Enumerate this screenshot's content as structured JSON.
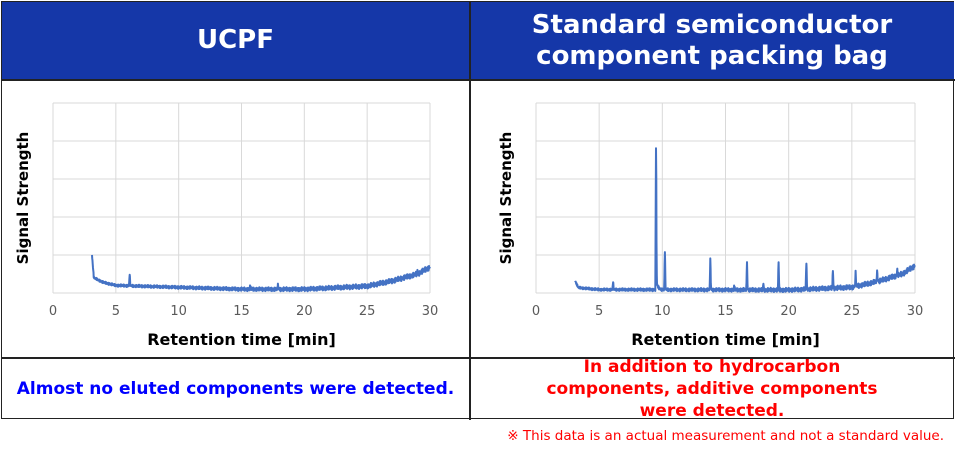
{
  "headers": {
    "left": "UCPF",
    "right": "Standard semiconductor component packing bag"
  },
  "footers": {
    "left": "Almost no eluted components were detected.",
    "right": "In addition to hydrocarbon components, additive components were detected."
  },
  "note": "※ This data is an actual measurement and not a standard value.",
  "colors": {
    "header_bg": "#1537A8",
    "line": "#4472C4",
    "left_footer": "#0000FF",
    "right_footer": "#FF0000",
    "grid": "#D9D9D9"
  },
  "chart_data": [
    {
      "type": "line",
      "title": "",
      "xlabel": "Retention time [min]",
      "ylabel": "Signal Strength",
      "xlim": [
        0,
        30
      ],
      "ylim": [
        0,
        5
      ],
      "xticks": [
        "0",
        "5",
        "10",
        "15",
        "20",
        "25",
        "30"
      ],
      "y_gridlines": 5,
      "grid": true,
      "baseline": [
        [
          3.1,
          1.0
        ],
        [
          3.25,
          0.4
        ],
        [
          4,
          0.28
        ],
        [
          5,
          0.2
        ],
        [
          10,
          0.15
        ],
        [
          15,
          0.1
        ],
        [
          20,
          0.1
        ],
        [
          25,
          0.18
        ],
        [
          27,
          0.32
        ],
        [
          29,
          0.5
        ],
        [
          30,
          0.68
        ]
      ],
      "peaks": [
        [
          6.1,
          0.3
        ],
        [
          15.7,
          0.08
        ],
        [
          17.9,
          0.1
        ],
        [
          29,
          0.1
        ]
      ]
    },
    {
      "type": "line",
      "title": "",
      "xlabel": "Retention time [min]",
      "ylabel": "Signal Strength",
      "xlim": [
        0,
        30
      ],
      "ylim": [
        0,
        5
      ],
      "xticks": [
        "0",
        "5",
        "10",
        "15",
        "20",
        "25",
        "30"
      ],
      "y_gridlines": 5,
      "grid": true,
      "baseline": [
        [
          3.1,
          0.32
        ],
        [
          3.35,
          0.14
        ],
        [
          5,
          0.09
        ],
        [
          20,
          0.08
        ],
        [
          25,
          0.15
        ],
        [
          27,
          0.3
        ],
        [
          29,
          0.5
        ],
        [
          30,
          0.72
        ]
      ],
      "peaks": [
        [
          6.1,
          0.2
        ],
        [
          9.5,
          3.75
        ],
        [
          10.2,
          1.0
        ],
        [
          13.8,
          0.78
        ],
        [
          15.7,
          0.1
        ],
        [
          16.7,
          0.7
        ],
        [
          18,
          0.15
        ],
        [
          19.2,
          0.72
        ],
        [
          21.4,
          0.7
        ],
        [
          23.5,
          0.45
        ],
        [
          25.3,
          0.35
        ],
        [
          27,
          0.25
        ],
        [
          28.6,
          0.15
        ]
      ]
    }
  ]
}
